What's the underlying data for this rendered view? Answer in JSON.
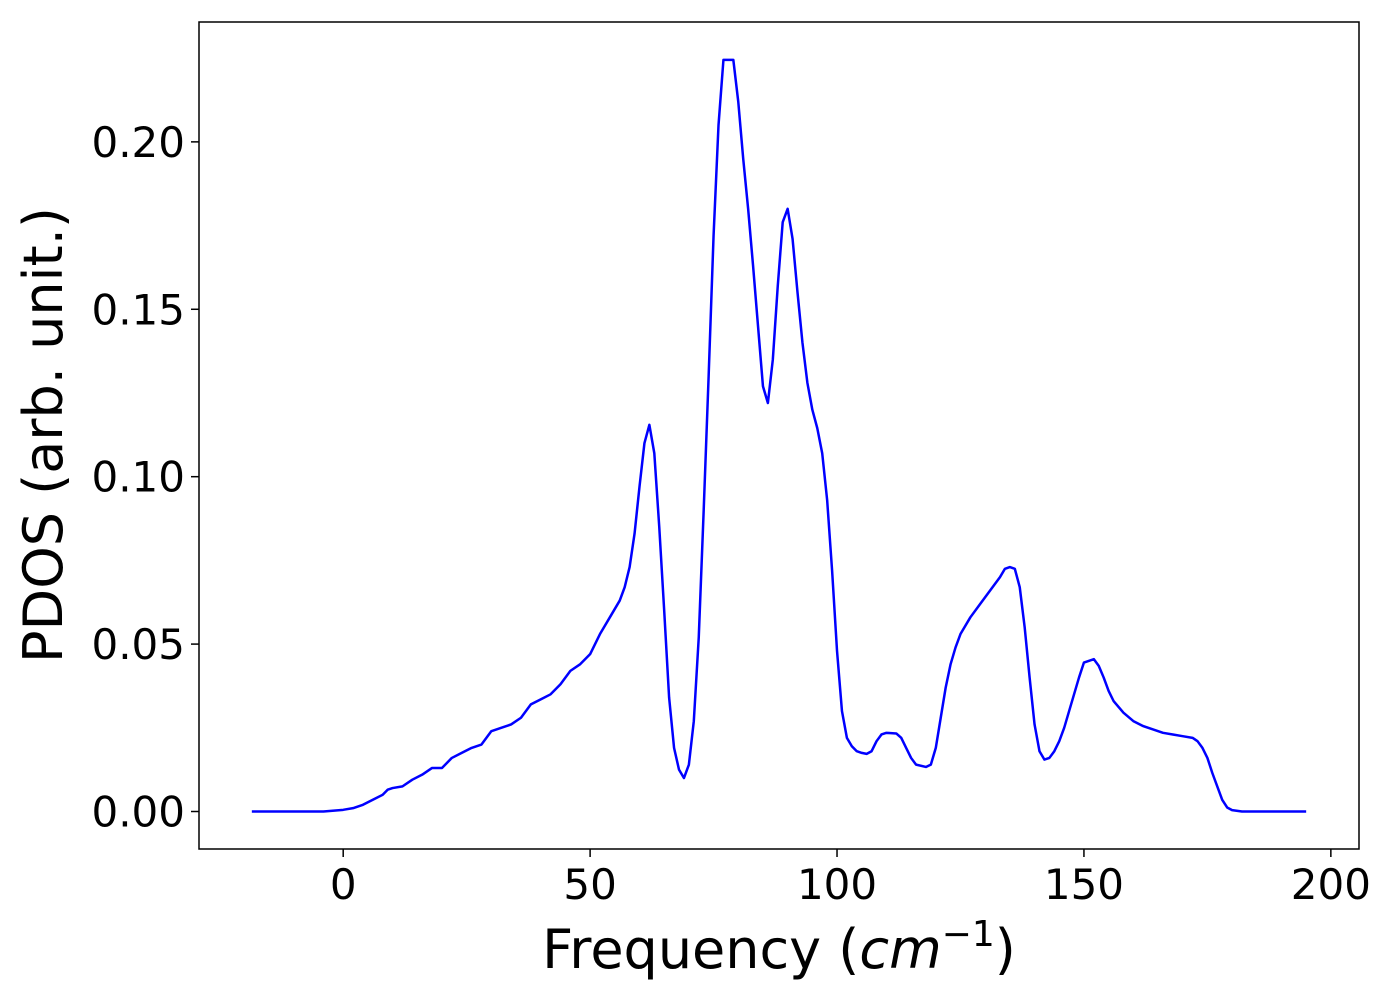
{
  "chart_data": {
    "type": "line",
    "xlabel": {
      "text": "Frequency (",
      "math": "cm",
      "sup": "−1",
      "close": ")"
    },
    "ylabel": "PDOS (arb. unit.)",
    "x": [
      -18.5,
      -10,
      -4,
      0,
      2,
      4,
      6,
      8,
      9,
      10,
      12,
      14,
      16,
      18,
      20,
      22,
      24,
      26,
      28,
      30,
      32,
      34,
      36,
      38,
      40,
      42,
      44,
      46,
      48,
      50,
      52,
      54,
      56,
      57,
      58,
      59,
      60,
      61,
      62,
      63,
      64,
      65,
      66,
      67,
      68,
      69,
      70,
      71,
      72,
      73,
      74,
      75,
      76,
      77,
      78,
      79,
      80,
      81,
      82,
      83,
      84,
      85,
      86,
      87,
      88,
      89,
      90,
      91,
      92,
      93,
      94,
      95,
      96,
      97,
      98,
      99,
      100,
      101,
      102,
      103,
      104,
      105,
      106,
      107,
      108,
      109,
      110,
      112,
      113,
      114,
      115,
      116,
      118,
      119,
      120,
      121,
      122,
      123,
      124,
      125,
      127,
      129,
      131,
      133,
      134,
      135,
      136,
      137,
      138,
      139,
      140,
      141,
      142,
      143,
      144,
      145,
      146,
      147,
      148,
      149,
      150,
      152,
      153,
      154,
      155,
      156,
      158,
      160,
      162,
      164,
      166,
      168,
      170,
      172,
      173,
      174,
      175,
      176,
      177,
      178,
      179,
      180,
      182,
      190,
      195
    ],
    "series": [
      {
        "name": "PDOS",
        "color": "#0000ff",
        "values": [
          0,
          0,
          0,
          0.0005,
          0.001,
          0.002,
          0.0035,
          0.005,
          0.0065,
          0.007,
          0.0075,
          0.0095,
          0.011,
          0.013,
          0.013,
          0.016,
          0.0175,
          0.019,
          0.02,
          0.024,
          0.025,
          0.026,
          0.028,
          0.032,
          0.0335,
          0.035,
          0.038,
          0.042,
          0.044,
          0.047,
          0.053,
          0.058,
          0.063,
          0.067,
          0.073,
          0.083,
          0.097,
          0.11,
          0.1155,
          0.107,
          0.085,
          0.06,
          0.034,
          0.019,
          0.0125,
          0.01,
          0.014,
          0.027,
          0.052,
          0.09,
          0.13,
          0.172,
          0.205,
          0.2245,
          0.2245,
          0.2245,
          0.212,
          0.195,
          0.18,
          0.163,
          0.145,
          0.127,
          0.122,
          0.135,
          0.157,
          0.176,
          0.18,
          0.171,
          0.155,
          0.14,
          0.128,
          0.12,
          0.1145,
          0.107,
          0.093,
          0.072,
          0.048,
          0.03,
          0.022,
          0.0195,
          0.018,
          0.0175,
          0.0172,
          0.018,
          0.021,
          0.023,
          0.0235,
          0.0233,
          0.022,
          0.019,
          0.016,
          0.014,
          0.0133,
          0.014,
          0.019,
          0.028,
          0.037,
          0.044,
          0.049,
          0.053,
          0.058,
          0.062,
          0.066,
          0.07,
          0.0725,
          0.073,
          0.0725,
          0.067,
          0.055,
          0.04,
          0.026,
          0.018,
          0.0155,
          0.016,
          0.018,
          0.021,
          0.025,
          0.03,
          0.035,
          0.04,
          0.0445,
          0.0455,
          0.0435,
          0.04,
          0.036,
          0.033,
          0.0295,
          0.027,
          0.0255,
          0.0245,
          0.0235,
          0.023,
          0.0225,
          0.022,
          0.021,
          0.019,
          0.016,
          0.0115,
          0.0075,
          0.0035,
          0.0012,
          0.0004,
          0,
          0,
          0
        ]
      }
    ],
    "xlim": [
      -29.2,
      205.7
    ],
    "ylim": [
      -0.0112,
      0.2358
    ],
    "xticks": [
      0,
      50,
      100,
      150,
      200
    ],
    "yticks": [
      {
        "value": 0,
        "label": "0.00"
      },
      0.05,
      {
        "value": 0.1,
        "label": "0.10"
      },
      0.15,
      {
        "value": 0.2,
        "label": "0.20"
      }
    ]
  }
}
